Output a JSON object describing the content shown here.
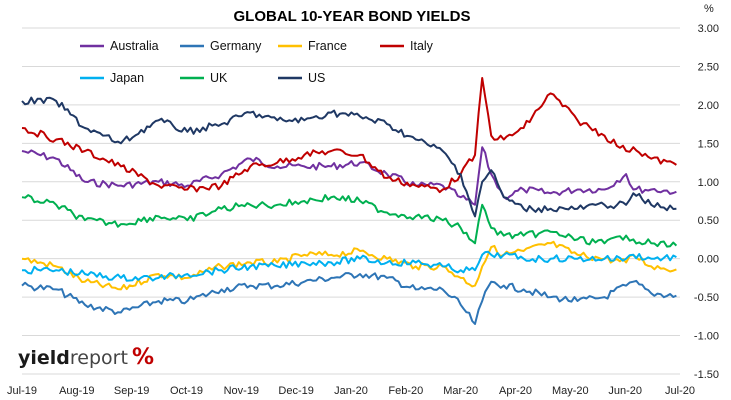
{
  "chart_data": {
    "type": "line",
    "title": "GLOBAL 10-YEAR BOND YIELDS",
    "ylabel": "%",
    "y_axis_side": "right",
    "ylim": [
      -1.5,
      3.0
    ],
    "yticks": [
      "3.00",
      "2.50",
      "2.00",
      "1.50",
      "1.00",
      "0.50",
      "0.00",
      "-0.50",
      "-1.00",
      "-1.50"
    ],
    "xlim": [
      "2019-07-01",
      "2020-07-01"
    ],
    "x_tick_labels": [
      "Jul-19",
      "Aug-19",
      "Sep-19",
      "Oct-19",
      "Nov-19",
      "Dec-19",
      "Jan-20",
      "Feb-20",
      "Mar-20",
      "Apr-20",
      "May-20",
      "Jun-20",
      "Jul-20"
    ],
    "grid": "horizontal",
    "legend": "top-left",
    "series": [
      {
        "name": "Australia",
        "color": "#7030A0",
        "x": [
          "2019-07-01",
          "2019-07-20",
          "2019-08-05",
          "2019-08-25",
          "2019-09-15",
          "2019-10-01",
          "2019-10-20",
          "2019-11-05",
          "2019-11-20",
          "2019-12-05",
          "2019-12-20",
          "2020-01-05",
          "2020-01-20",
          "2020-02-05",
          "2020-02-20",
          "2020-03-01",
          "2020-03-09",
          "2020-03-13",
          "2020-03-18",
          "2020-03-25",
          "2020-04-05",
          "2020-04-20",
          "2020-05-05",
          "2020-05-20",
          "2020-06-01",
          "2020-06-05",
          "2020-06-15",
          "2020-06-29"
        ],
        "values": [
          1.4,
          1.3,
          1.0,
          0.95,
          1.0,
          0.95,
          1.1,
          1.3,
          1.2,
          1.2,
          1.2,
          1.25,
          1.1,
          0.95,
          0.95,
          0.8,
          0.7,
          1.45,
          1.1,
          0.8,
          0.9,
          0.85,
          0.9,
          0.9,
          1.1,
          0.9,
          0.9,
          0.87
        ]
      },
      {
        "name": "Germany",
        "color": "#2E75B6",
        "x": [
          "2019-07-01",
          "2019-07-20",
          "2019-08-05",
          "2019-08-25",
          "2019-09-15",
          "2019-10-01",
          "2019-10-20",
          "2019-11-05",
          "2019-11-20",
          "2019-12-05",
          "2019-12-20",
          "2020-01-05",
          "2020-01-20",
          "2020-02-05",
          "2020-02-20",
          "2020-03-01",
          "2020-03-09",
          "2020-03-13",
          "2020-03-18",
          "2020-03-25",
          "2020-04-05",
          "2020-04-20",
          "2020-05-05",
          "2020-05-20",
          "2020-06-01",
          "2020-06-05",
          "2020-06-15",
          "2020-06-29"
        ],
        "values": [
          -0.35,
          -0.4,
          -0.6,
          -0.7,
          -0.55,
          -0.55,
          -0.4,
          -0.35,
          -0.35,
          -0.3,
          -0.25,
          -0.2,
          -0.25,
          -0.4,
          -0.4,
          -0.6,
          -0.85,
          -0.55,
          -0.3,
          -0.35,
          -0.4,
          -0.5,
          -0.55,
          -0.5,
          -0.35,
          -0.3,
          -0.45,
          -0.48
        ]
      },
      {
        "name": "France",
        "color": "#FFC000",
        "x": [
          "2019-07-01",
          "2019-07-20",
          "2019-08-05",
          "2019-08-25",
          "2019-09-15",
          "2019-10-01",
          "2019-10-20",
          "2019-11-05",
          "2019-11-20",
          "2019-12-05",
          "2019-12-20",
          "2020-01-05",
          "2020-01-20",
          "2020-02-05",
          "2020-02-20",
          "2020-03-01",
          "2020-03-09",
          "2020-03-13",
          "2020-03-18",
          "2020-03-25",
          "2020-04-05",
          "2020-04-20",
          "2020-05-05",
          "2020-05-20",
          "2020-06-01",
          "2020-06-05",
          "2020-06-15",
          "2020-06-29"
        ],
        "values": [
          0.0,
          -0.1,
          -0.3,
          -0.4,
          -0.2,
          -0.25,
          -0.1,
          -0.05,
          -0.05,
          0.05,
          0.05,
          0.1,
          0.0,
          -0.1,
          -0.1,
          -0.25,
          -0.35,
          -0.1,
          0.15,
          0.05,
          0.1,
          0.2,
          0.05,
          0.0,
          -0.05,
          0.05,
          -0.1,
          -0.14
        ]
      },
      {
        "name": "Italy",
        "color": "#C00000",
        "x": [
          "2019-07-01",
          "2019-07-20",
          "2019-08-05",
          "2019-08-25",
          "2019-09-15",
          "2019-10-01",
          "2019-10-20",
          "2019-11-05",
          "2019-11-20",
          "2019-12-05",
          "2019-12-20",
          "2020-01-05",
          "2020-01-20",
          "2020-02-05",
          "2020-02-20",
          "2020-03-01",
          "2020-03-09",
          "2020-03-13",
          "2020-03-18",
          "2020-03-25",
          "2020-04-05",
          "2020-04-20",
          "2020-05-05",
          "2020-05-20",
          "2020-06-01",
          "2020-06-05",
          "2020-06-15",
          "2020-06-29"
        ],
        "values": [
          1.7,
          1.55,
          1.4,
          1.2,
          0.95,
          0.9,
          0.95,
          1.2,
          1.25,
          1.35,
          1.4,
          1.35,
          1.05,
          0.95,
          0.9,
          1.1,
          1.35,
          2.35,
          1.6,
          1.55,
          1.7,
          2.15,
          1.8,
          1.6,
          1.4,
          1.45,
          1.3,
          1.22
        ]
      },
      {
        "name": "Japan",
        "color": "#00B0F0",
        "x": [
          "2019-07-01",
          "2019-07-20",
          "2019-08-05",
          "2019-08-25",
          "2019-09-15",
          "2019-10-01",
          "2019-10-20",
          "2019-11-05",
          "2019-11-20",
          "2019-12-05",
          "2019-12-20",
          "2020-01-05",
          "2020-01-20",
          "2020-02-05",
          "2020-02-20",
          "2020-03-01",
          "2020-03-09",
          "2020-03-13",
          "2020-03-18",
          "2020-03-25",
          "2020-04-05",
          "2020-04-20",
          "2020-05-05",
          "2020-05-20",
          "2020-06-01",
          "2020-06-05",
          "2020-06-15",
          "2020-06-29"
        ],
        "values": [
          -0.15,
          -0.15,
          -0.2,
          -0.25,
          -0.25,
          -0.2,
          -0.15,
          -0.1,
          -0.1,
          -0.05,
          -0.05,
          0.0,
          -0.05,
          -0.05,
          -0.1,
          -0.15,
          -0.15,
          0.05,
          0.05,
          0.05,
          0.0,
          0.0,
          0.0,
          0.0,
          0.0,
          0.05,
          0.0,
          0.02
        ]
      },
      {
        "name": "UK",
        "color": "#00B050",
        "x": [
          "2019-07-01",
          "2019-07-20",
          "2019-08-05",
          "2019-08-25",
          "2019-09-15",
          "2019-10-01",
          "2019-10-20",
          "2019-11-05",
          "2019-11-20",
          "2019-12-05",
          "2019-12-20",
          "2020-01-05",
          "2020-01-20",
          "2020-02-05",
          "2020-02-20",
          "2020-03-01",
          "2020-03-09",
          "2020-03-13",
          "2020-03-18",
          "2020-03-25",
          "2020-04-05",
          "2020-04-20",
          "2020-05-05",
          "2020-05-20",
          "2020-06-01",
          "2020-06-05",
          "2020-06-15",
          "2020-06-29"
        ],
        "values": [
          0.8,
          0.7,
          0.5,
          0.45,
          0.55,
          0.5,
          0.65,
          0.7,
          0.7,
          0.75,
          0.8,
          0.75,
          0.6,
          0.55,
          0.5,
          0.4,
          0.2,
          0.7,
          0.4,
          0.3,
          0.3,
          0.35,
          0.25,
          0.2,
          0.3,
          0.25,
          0.2,
          0.17
        ]
      },
      {
        "name": "US",
        "color": "#1F3864",
        "x": [
          "2019-07-01",
          "2019-07-20",
          "2019-08-05",
          "2019-08-25",
          "2019-09-15",
          "2019-10-01",
          "2019-10-20",
          "2019-11-05",
          "2019-11-20",
          "2019-12-05",
          "2019-12-20",
          "2020-01-05",
          "2020-01-20",
          "2020-02-05",
          "2020-02-20",
          "2020-03-01",
          "2020-03-09",
          "2020-03-13",
          "2020-03-18",
          "2020-03-25",
          "2020-04-05",
          "2020-04-20",
          "2020-05-05",
          "2020-05-20",
          "2020-06-01",
          "2020-06-05",
          "2020-06-15",
          "2020-06-29"
        ],
        "values": [
          2.05,
          2.05,
          1.7,
          1.5,
          1.8,
          1.65,
          1.75,
          1.9,
          1.8,
          1.8,
          1.9,
          1.85,
          1.75,
          1.55,
          1.4,
          1.1,
          0.55,
          1.0,
          1.15,
          0.8,
          0.65,
          0.65,
          0.65,
          0.7,
          0.7,
          0.85,
          0.7,
          0.65
        ]
      }
    ]
  },
  "logo": {
    "text_a": "yield",
    "text_b": "report",
    "symbol": "%"
  }
}
